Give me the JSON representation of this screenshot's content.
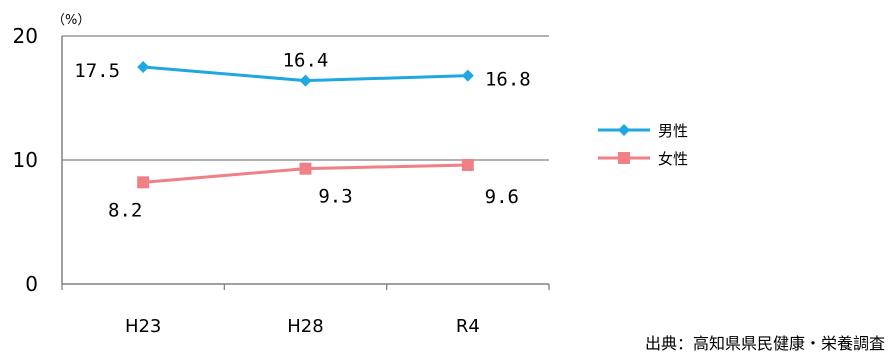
{
  "chart_data": {
    "type": "line",
    "unit_label": "（%）",
    "categories": [
      "H23",
      "H28",
      "R4"
    ],
    "ylim": [
      0,
      20
    ],
    "yticks": [
      "0",
      "10",
      "20"
    ],
    "gridlines": [
      10,
      20
    ],
    "legend_position": "right",
    "series": [
      {
        "name": "男性",
        "color": "#1ea7e0",
        "marker": "diamond",
        "values": [
          17.5,
          16.4,
          16.8
        ],
        "labels": [
          "17.5",
          "16.4",
          "16.8"
        ]
      },
      {
        "name": "女性",
        "color": "#f07f86",
        "marker": "square",
        "values": [
          8.2,
          9.3,
          9.6
        ],
        "labels": [
          "8.2",
          "9.3",
          "9.6"
        ]
      }
    ],
    "source_note": "出典：高知県県民健康・栄養調査"
  }
}
